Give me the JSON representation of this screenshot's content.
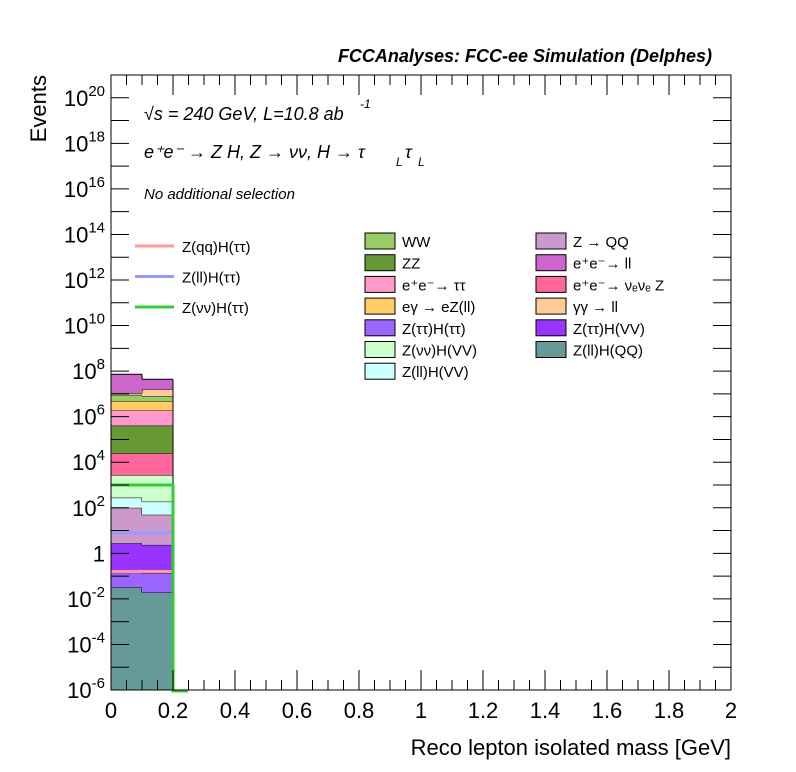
{
  "chart_data": {
    "type": "bar",
    "stacked": true,
    "title": "FCCAnalyses: FCC-ee Simulation (Delphes)",
    "xlabel": "Reco lepton isolated mass [GeV]",
    "ylabel": "Events",
    "xlim": [
      0,
      2
    ],
    "ylim": [
      1e-06,
      1e+21
    ],
    "yscale": "log",
    "x_tick_labels": [
      "0",
      "0.2",
      "0.4",
      "0.6",
      "0.8",
      "1",
      "1.2",
      "1.4",
      "1.6",
      "1.8",
      "2"
    ],
    "x_ticks": [
      0,
      0.2,
      0.4,
      0.6,
      0.8,
      1,
      1.2,
      1.4,
      1.6,
      1.8,
      2
    ],
    "y_ticks": [
      {
        "value": 1e-06,
        "base": "10",
        "exp": "-6"
      },
      {
        "value": 0.0001,
        "base": "10",
        "exp": "-4"
      },
      {
        "value": 0.01,
        "base": "10",
        "exp": "-2"
      },
      {
        "value": 1,
        "base": "1",
        "exp": ""
      },
      {
        "value": 100.0,
        "base": "10",
        "exp": "2"
      },
      {
        "value": 10000.0,
        "base": "10",
        "exp": "4"
      },
      {
        "value": 1000000.0,
        "base": "10",
        "exp": "6"
      },
      {
        "value": 100000000.0,
        "base": "10",
        "exp": "8"
      },
      {
        "value": 10000000000.0,
        "base": "10",
        "exp": "10"
      },
      {
        "value": 1000000000000.0,
        "base": "10",
        "exp": "12"
      },
      {
        "value": 100000000000000.0,
        "base": "10",
        "exp": "14"
      },
      {
        "value": 1e+16,
        "base": "10",
        "exp": "16"
      },
      {
        "value": 1e+18,
        "base": "10",
        "exp": "18"
      },
      {
        "value": 1e+20,
        "base": "10",
        "exp": "20"
      }
    ],
    "annotations": {
      "energy": "√s = 240 GeV, L=10.8 ab",
      "energy_sup": "-1",
      "process": "e⁺e⁻ → Z H, Z → νν, H → τ",
      "process_sub1": "L",
      "process_tau2": "τ",
      "process_sub2": "L",
      "selection": "No additional selection"
    },
    "bin_edges": [
      0,
      0.1,
      0.2
    ],
    "stack_series": [
      {
        "name": "Z(ll)H(QQ)",
        "color": "#669999",
        "values": [
          0.032,
          0.019
        ]
      },
      {
        "name": "Z(ττ)H(ττ)",
        "color": "#9966ff",
        "values": [
          0.11,
          0.12
        ]
      },
      {
        "name": "Z(ττ)H(VV)",
        "color": "#9933ff",
        "values": [
          2.6,
          2.2
        ]
      },
      {
        "name": "Z → QQ",
        "color": "#cc99cc",
        "values": [
          97,
          47
        ]
      },
      {
        "name": "Z(ll)H(VV)",
        "color": "#ccffff",
        "values": [
          180,
          137
        ]
      },
      {
        "name": "Z(νν)H(VV)",
        "color": "#ccffcc",
        "values": [
          2470,
          2560
        ]
      },
      {
        "name": "e⁺e⁻→ νₑνₑ Z",
        "color": "#ff6699",
        "values": [
          22000,
          22000
        ]
      },
      {
        "name": "ZZ",
        "color": "#669933",
        "values": [
          380000,
          380000
        ]
      },
      {
        "name": "e⁺e⁻→ ττ",
        "color": "#ff99cc",
        "values": [
          1450000,
          1450000
        ]
      },
      {
        "name": "eγ → eZ(ll)",
        "color": "#ffcc66",
        "values": [
          3000000,
          3000000
        ]
      },
      {
        "name": "WW",
        "color": "#99cc66",
        "values": [
          4200000,
          3200000
        ]
      },
      {
        "name": "γγ → ll",
        "color": "#ffcc99",
        "values": [
          1600000,
          7900000
        ]
      },
      {
        "name": "e⁺e⁻→ ll",
        "color": "#cc66cc",
        "values": [
          62000000,
          28000000
        ]
      }
    ],
    "line_series": [
      {
        "name": "Z(qq)H(ττ)",
        "color": "#ff9999",
        "values": [
          0.16,
          0.16
        ]
      },
      {
        "name": "Z(ll)H(ττ)",
        "color": "#9999ff",
        "values": [
          8,
          8
        ]
      },
      {
        "name": "Z(νν)H(ττ)",
        "color": "#33cc33",
        "values": [
          1000,
          1000
        ]
      }
    ],
    "legend_left": [
      "Z(qq)H(ττ)",
      "Z(ll)H(ττ)",
      "Z(νν)H(ττ)"
    ],
    "legend_col1": [
      "WW",
      "ZZ",
      "e⁺e⁻→ ττ",
      "eγ → eZ(ll)",
      "Z(ττ)H(ττ)",
      "Z(νν)H(VV)",
      "Z(ll)H(VV)"
    ],
    "legend_col2": [
      "Z → QQ",
      "e⁺e⁻→ ll",
      "e⁺e⁻→ νₑνₑ Z",
      "γγ → ll",
      "Z(ττ)H(VV)",
      "Z(ll)H(QQ)"
    ],
    "legend_placement": "top-right"
  }
}
